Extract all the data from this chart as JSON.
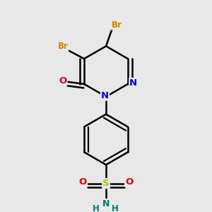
{
  "background_color": "#e8e8e8",
  "bond_color": "#000000",
  "atom_colors": {
    "Br": "#cc8800",
    "N": "#0000dd",
    "O": "#dd0000",
    "S": "#bbbb00",
    "NH2_N": "#007777",
    "C": "#000000"
  },
  "bond_lw": 1.8,
  "figsize": [
    3.0,
    3.0
  ],
  "dpi": 100
}
